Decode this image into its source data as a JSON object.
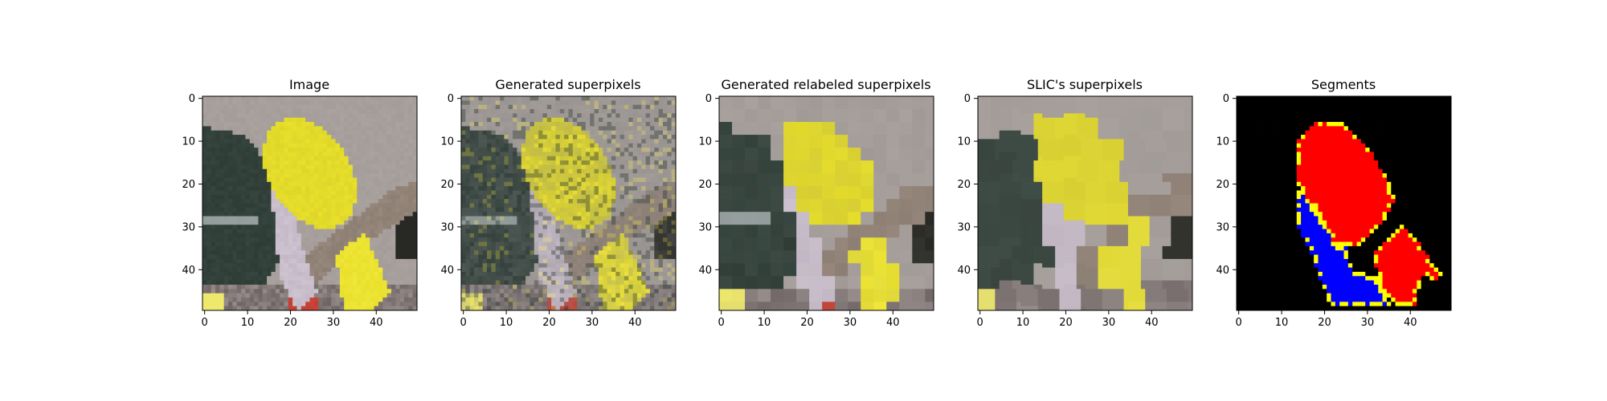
{
  "figure": {
    "panels": [
      {
        "title": "Image",
        "kind": "photo"
      },
      {
        "title": "Generated superpixels",
        "kind": "noisy-superpixels"
      },
      {
        "title": "Generated relabeled superpixels",
        "kind": "relabeled-superpixels"
      },
      {
        "title": "SLIC's superpixels",
        "kind": "slic-superpixels"
      },
      {
        "title": "Segments",
        "kind": "segments"
      }
    ],
    "x_ticks": [
      "0",
      "10",
      "20",
      "30",
      "40"
    ],
    "y_ticks": [
      "0",
      "10",
      "20",
      "30",
      "40"
    ],
    "grid_size": 50
  },
  "colors": {
    "segment_red": "#ff0000",
    "segment_blue": "#0000ff",
    "segment_border": "#ffff00",
    "segment_background": "#000000",
    "bird_yellow": "#e8e02a",
    "wall_gray": "#a39c98",
    "branch_brown": "#8c7e72",
    "dark_green": "#2f3c36"
  }
}
